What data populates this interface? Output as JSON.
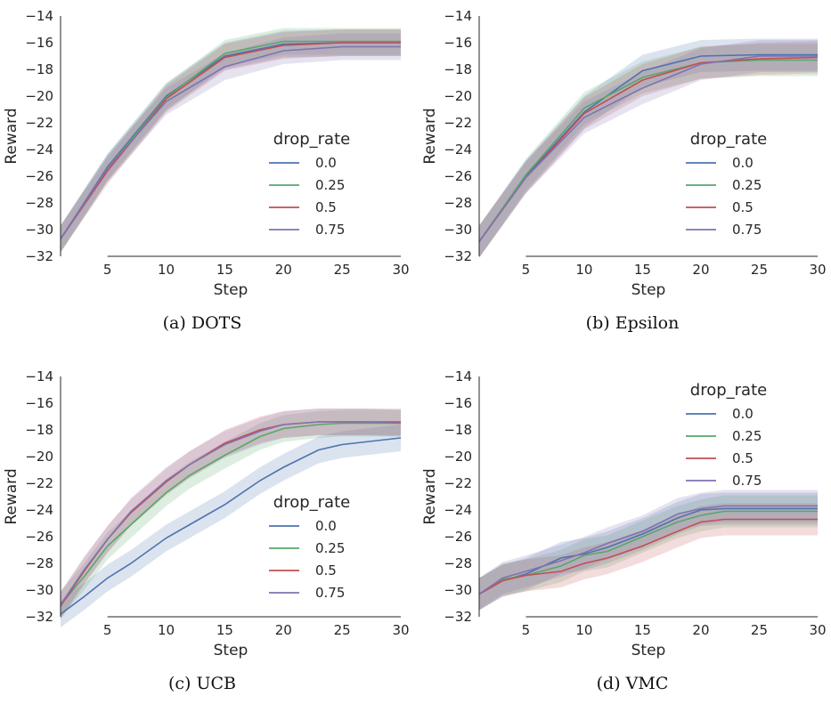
{
  "chart_data": [
    {
      "type": "line",
      "panel": "a",
      "caption": "(a) DOTS",
      "xlabel": "Step",
      "ylabel": "Reward",
      "xlim": [
        1,
        30
      ],
      "ylim": [
        -32,
        -14
      ],
      "xticks": [
        5,
        10,
        15,
        20,
        25,
        30
      ],
      "yticks": [
        -32,
        -30,
        -28,
        -26,
        -24,
        -22,
        -20,
        -18,
        -16,
        -14
      ],
      "legend": {
        "title": "drop_rate",
        "placement": "lower-right"
      },
      "x": [
        1,
        5,
        10,
        15,
        20,
        25,
        30
      ],
      "series": [
        {
          "name": "0.0",
          "color": "#4c72b0",
          "values": [
            -30.7,
            -25.3,
            -20.0,
            -17.0,
            -16.1,
            -16.0,
            -16.0
          ],
          "band": 1.0
        },
        {
          "name": "0.25",
          "color": "#55a868",
          "values": [
            -30.7,
            -25.4,
            -20.1,
            -16.8,
            -15.9,
            -15.9,
            -15.9
          ],
          "band": 1.0
        },
        {
          "name": "0.5",
          "color": "#c44e52",
          "values": [
            -30.7,
            -25.6,
            -20.2,
            -17.1,
            -16.2,
            -16.0,
            -16.0
          ],
          "band": 1.0
        },
        {
          "name": "0.75",
          "color": "#8172b2",
          "values": [
            -30.7,
            -25.4,
            -20.4,
            -17.8,
            -16.6,
            -16.3,
            -16.3
          ],
          "band": 1.0
        }
      ]
    },
    {
      "type": "line",
      "panel": "b",
      "caption": "(b) Epsilon",
      "xlabel": "Step",
      "ylabel": "Reward",
      "xlim": [
        1,
        30
      ],
      "ylim": [
        -32,
        -14
      ],
      "xticks": [
        5,
        10,
        15,
        20,
        25,
        30
      ],
      "yticks": [
        -32,
        -30,
        -28,
        -26,
        -24,
        -22,
        -20,
        -18,
        -16,
        -14
      ],
      "legend": {
        "title": "drop_rate",
        "placement": "lower-right"
      },
      "x": [
        1,
        5,
        10,
        15,
        20,
        25,
        30
      ],
      "series": [
        {
          "name": "0.0",
          "color": "#4c72b0",
          "values": [
            -30.9,
            -26.0,
            -21.2,
            -18.1,
            -17.0,
            -16.9,
            -16.9
          ],
          "band": 1.2
        },
        {
          "name": "0.25",
          "color": "#55a868",
          "values": [
            -30.9,
            -25.9,
            -20.9,
            -18.6,
            -17.5,
            -17.3,
            -17.3
          ],
          "band": 1.2
        },
        {
          "name": "0.5",
          "color": "#c44e52",
          "values": [
            -30.9,
            -26.1,
            -21.3,
            -18.8,
            -17.5,
            -17.2,
            -17.1
          ],
          "band": 1.2
        },
        {
          "name": "0.75",
          "color": "#8172b2",
          "values": [
            -30.9,
            -26.1,
            -21.6,
            -19.4,
            -17.6,
            -17.0,
            -17.0
          ],
          "band": 1.2
        }
      ]
    },
    {
      "type": "line",
      "panel": "c",
      "caption": "(c) UCB",
      "xlabel": "Step",
      "ylabel": "Reward",
      "xlim": [
        1,
        30
      ],
      "ylim": [
        -32,
        -14
      ],
      "xticks": [
        5,
        10,
        15,
        20,
        25,
        30
      ],
      "yticks": [
        -32,
        -30,
        -28,
        -26,
        -24,
        -22,
        -20,
        -18,
        -16,
        -14
      ],
      "legend": {
        "title": "drop_rate",
        "placement": "lower-right"
      },
      "x": [
        1,
        3,
        5,
        7,
        10,
        12,
        15,
        18,
        20,
        23,
        25,
        27,
        30
      ],
      "series": [
        {
          "name": "0.0",
          "color": "#4c72b0",
          "values": [
            -31.8,
            -30.5,
            -29.1,
            -28.0,
            -26.1,
            -25.1,
            -23.6,
            -21.8,
            -20.8,
            -19.5,
            -19.1,
            -18.9,
            -18.6
          ],
          "band": 1.0
        },
        {
          "name": "0.25",
          "color": "#55a868",
          "values": [
            -31.1,
            -29.0,
            -26.7,
            -25.1,
            -22.7,
            -21.4,
            -19.9,
            -18.5,
            -17.9,
            -17.6,
            -17.5,
            -17.5,
            -17.5
          ],
          "band": 1.0
        },
        {
          "name": "0.5",
          "color": "#c44e52",
          "values": [
            -31.2,
            -28.6,
            -26.2,
            -24.2,
            -21.9,
            -20.6,
            -19.0,
            -18.0,
            -17.6,
            -17.4,
            -17.4,
            -17.4,
            -17.4
          ],
          "band": 1.0
        },
        {
          "name": "0.75",
          "color": "#8172b2",
          "values": [
            -31.1,
            -28.5,
            -26.2,
            -24.1,
            -21.8,
            -20.6,
            -19.1,
            -18.1,
            -17.6,
            -17.4,
            -17.4,
            -17.4,
            -17.5
          ],
          "band": 1.0
        }
      ]
    },
    {
      "type": "line",
      "panel": "d",
      "caption": "(d) VMC",
      "xlabel": "Step",
      "ylabel": "Reward",
      "xlim": [
        1,
        30
      ],
      "ylim": [
        -32,
        -14
      ],
      "xticks": [
        5,
        10,
        15,
        20,
        25,
        30
      ],
      "yticks": [
        -32,
        -30,
        -28,
        -26,
        -24,
        -22,
        -20,
        -18,
        -16,
        -14
      ],
      "legend": {
        "title": "drop_rate",
        "placement": "upper-right"
      },
      "x": [
        1,
        3,
        5,
        8,
        10,
        12,
        15,
        18,
        20,
        22,
        25,
        30
      ],
      "series": [
        {
          "name": "0.0",
          "color": "#4c72b0",
          "values": [
            -30.3,
            -29.3,
            -28.8,
            -27.6,
            -27.3,
            -26.8,
            -25.8,
            -24.6,
            -24.0,
            -23.9,
            -23.9,
            -23.9
          ],
          "band": 1.2
        },
        {
          "name": "0.25",
          "color": "#55a868",
          "values": [
            -30.3,
            -29.2,
            -28.9,
            -28.2,
            -27.4,
            -27.1,
            -26.0,
            -24.9,
            -24.4,
            -24.1,
            -24.1,
            -24.1
          ],
          "band": 1.2
        },
        {
          "name": "0.5",
          "color": "#c44e52",
          "values": [
            -30.3,
            -29.3,
            -28.9,
            -28.6,
            -28.0,
            -27.6,
            -26.7,
            -25.6,
            -24.9,
            -24.7,
            -24.7,
            -24.7
          ],
          "band": 1.2
        },
        {
          "name": "0.75",
          "color": "#8172b2",
          "values": [
            -30.3,
            -29.1,
            -28.6,
            -27.8,
            -27.2,
            -26.5,
            -25.6,
            -24.3,
            -23.9,
            -23.7,
            -23.7,
            -23.7
          ],
          "band": 1.2
        }
      ]
    }
  ]
}
